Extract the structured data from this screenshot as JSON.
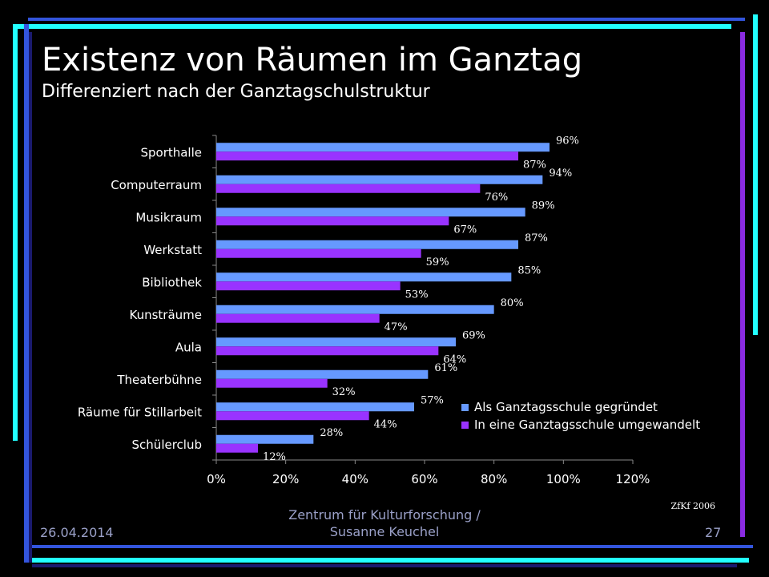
{
  "slide": {
    "title": "Existenz von Räumen im Ganztag",
    "subtitle": "Differenziert nach der Ganztagschulstruktur",
    "footer_date": "26.04.2014",
    "footer_center": "Zentrum für Kulturforschung / Susanne Keuchel",
    "page_number": "27",
    "source_note": "ZfKf 2006"
  },
  "colors": {
    "background": "#000000",
    "series_1": "#6699ff",
    "series_2": "#9933ff",
    "deco_blue": "#3355dd",
    "deco_purple": "#8a2be2",
    "deco_cyan": "#22ffff"
  },
  "chart_data": {
    "type": "bar",
    "orientation": "horizontal",
    "categories": [
      "Sporthalle",
      "Computerraum",
      "Musikraum",
      "Werkstatt",
      "Bibliothek",
      "Kunsträume",
      "Aula",
      "Theaterbühne",
      "Räume für Stillarbeit",
      "Schülerclub"
    ],
    "series": [
      {
        "name": "Als Ganztagsschule gegründet",
        "values": [
          96,
          94,
          89,
          87,
          85,
          80,
          69,
          61,
          57,
          28
        ],
        "labels": [
          "96%",
          "94%",
          "89%",
          "87%",
          "85%",
          "80%",
          "69%",
          "61%",
          "57%",
          "28%"
        ]
      },
      {
        "name": "In eine Ganztagsschule umgewandelt",
        "values": [
          87,
          76,
          67,
          59,
          53,
          47,
          64,
          32,
          44,
          12
        ],
        "labels": [
          "87%",
          "76%",
          "67%",
          "59%",
          "53%",
          "47%",
          "64%",
          "32%",
          "44%",
          "12%"
        ]
      }
    ],
    "xlim": [
      0,
      120
    ],
    "xticks": [
      "0%",
      "20%",
      "40%",
      "60%",
      "80%",
      "100%",
      "120%"
    ],
    "legend_position": "bottom-right",
    "grid": false
  }
}
